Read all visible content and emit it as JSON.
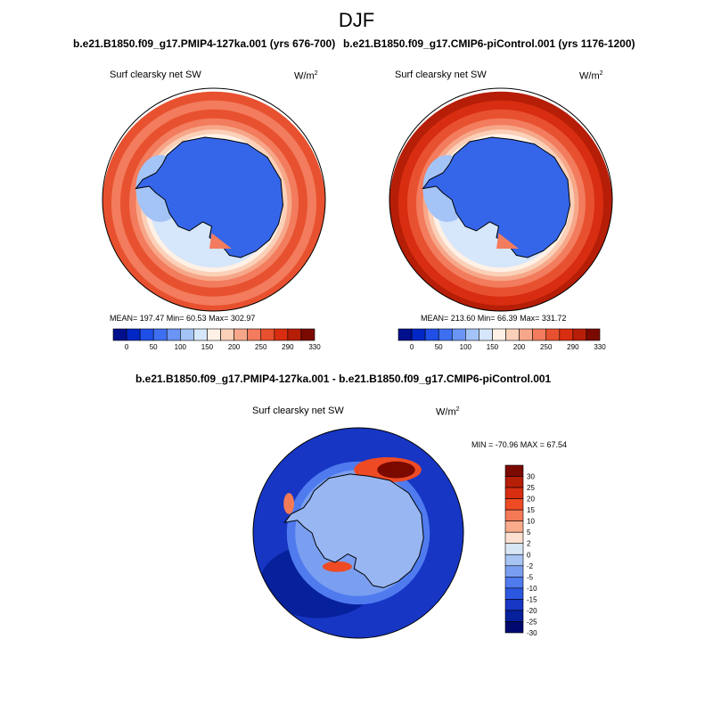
{
  "figure": {
    "title": "DJF",
    "left_case": "b.e21.B1850.f09_g17.PMIP4-127ka.001 (yrs 676-700)",
    "right_case": "b.e21.B1850.f09_g17.CMIP6-piControl.001 (yrs 1176-1200)",
    "diff_title": "b.e21.B1850.f09_g17.PMIP4-127ka.001 - b.e21.B1850.f09_g17.CMIP6-piControl.001",
    "variable": "Surf clearsky net SW",
    "units_base": "W/m",
    "units_exp": "2"
  },
  "chart_data": [
    {
      "type": "heatmap",
      "projection": "south polar stereographic",
      "title": "b.e21.B1850.f09_g17.PMIP4-127ka.001 (yrs 676-700)",
      "variable": "Surf clearsky net SW",
      "units": "W/m2",
      "stats": {
        "mean": 197.47,
        "min": 60.53,
        "max": 302.97,
        "text": "MEAN= 197.47  Min=  60.53  Max= 302.97"
      },
      "colorbar_levels": [
        0,
        25,
        50,
        75,
        100,
        125,
        150,
        175,
        200,
        225,
        250,
        270,
        290,
        310,
        330
      ],
      "colorbar_tick_labels": [
        "0",
        "50",
        "100",
        "150",
        "200",
        "250",
        "290",
        "330"
      ]
    },
    {
      "type": "heatmap",
      "projection": "south polar stereographic",
      "title": "b.e21.B1850.f09_g17.CMIP6-piControl.001 (yrs 1176-1200)",
      "variable": "Surf clearsky net SW",
      "units": "W/m2",
      "stats": {
        "mean": 213.6,
        "min": 66.39,
        "max": 331.72,
        "text": "MEAN= 213.60  Min=  66.39  Max= 331.72"
      },
      "colorbar_levels": [
        0,
        25,
        50,
        75,
        100,
        125,
        150,
        175,
        200,
        225,
        250,
        270,
        290,
        310,
        330
      ],
      "colorbar_tick_labels": [
        "0",
        "50",
        "100",
        "150",
        "200",
        "250",
        "290",
        "330"
      ]
    },
    {
      "type": "heatmap",
      "projection": "south polar stereographic",
      "title": "b.e21.B1850.f09_g17.PMIP4-127ka.001 - b.e21.B1850.f09_g17.CMIP6-piControl.001",
      "variable": "Surf clearsky net SW",
      "units": "W/m2",
      "stats": {
        "min": -70.96,
        "max": 67.54,
        "text": "MIN = -70.96 MAX =  67.54"
      },
      "colorbar_levels": [
        30,
        25,
        20,
        15,
        10,
        5,
        2,
        0,
        -2,
        -5,
        -10,
        -15,
        -20,
        -25,
        -30
      ],
      "colorbar_tick_labels": [
        "30",
        "25",
        "20",
        "15",
        "10",
        "5",
        "2",
        "0",
        "-2",
        "-5",
        "-10",
        "-15",
        "-20",
        "-25",
        "-30"
      ]
    }
  ],
  "colors": {
    "abs_palette": [
      "#000f8c",
      "#0026c4",
      "#1f4fe6",
      "#3e6ff0",
      "#6a95f4",
      "#a4c4f8",
      "#d6e6fb",
      "#fff1e6",
      "#fbd0b8",
      "#f7a789",
      "#f27c5d",
      "#e8512f",
      "#d82d10",
      "#b61e08",
      "#7a0a00"
    ],
    "diff_palette": [
      "#7a0a00",
      "#b61e08",
      "#d82d10",
      "#ee4b25",
      "#f47a57",
      "#f9ab8c",
      "#fde0cf",
      "#d8e6f5",
      "#a8c4f2",
      "#7a9ff0",
      "#4f7bef",
      "#2c58e0",
      "#1736c4",
      "#07209c",
      "#000a6e"
    ],
    "land_abs": "#3566ea",
    "land_diff": "#98b6f2",
    "outline": "#000000"
  }
}
